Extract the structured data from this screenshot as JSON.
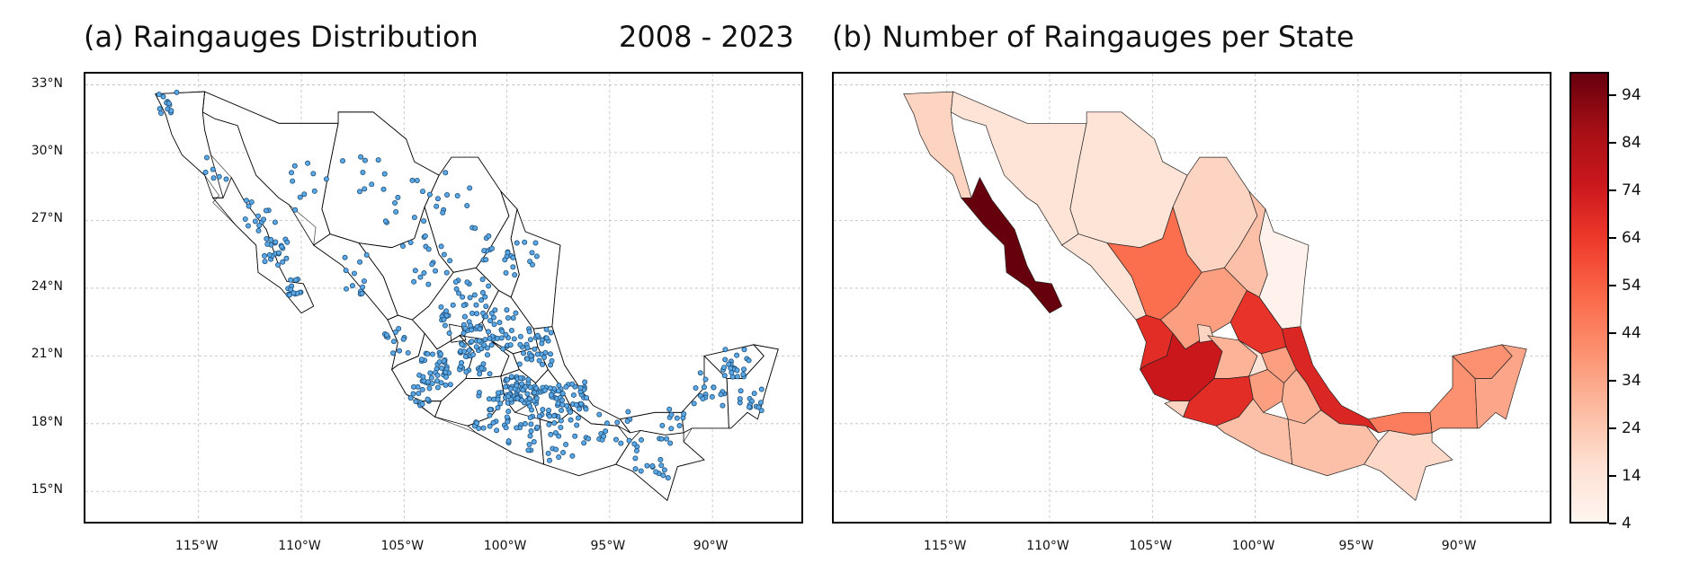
{
  "panel_a": {
    "title": "(a) Raingauges Distribution",
    "period": "2008 - 2023"
  },
  "panel_b": {
    "title": "(b) Number of Raingauges per State"
  },
  "lat_ticks": [
    "33°N",
    "30°N",
    "27°N",
    "24°N",
    "21°N",
    "18°N",
    "15°N"
  ],
  "lon_ticks": [
    "115°W",
    "110°W",
    "105°W",
    "100°W",
    "95°W",
    "90°W"
  ],
  "lat_values": [
    33,
    30,
    27,
    24,
    21,
    18,
    15
  ],
  "lon_values": [
    -115,
    -110,
    -105,
    -100,
    -95,
    -90
  ],
  "extent": {
    "lon": [
      -120.5,
      -85.5
    ],
    "lat": [
      13.5,
      33.5
    ]
  },
  "colorbar": {
    "ticks": [
      "94",
      "84",
      "74",
      "64",
      "54",
      "44",
      "34",
      "24",
      "14",
      "4"
    ],
    "tick_values": [
      94,
      84,
      74,
      64,
      54,
      44,
      34,
      24,
      14,
      4
    ],
    "min": 4,
    "max": 99,
    "colormap": "Reds",
    "colors": [
      "#fff5f0",
      "#fee0d2",
      "#fcbba1",
      "#fc9272",
      "#fb6a4a",
      "#ef3b2c",
      "#cb181d",
      "#a50f15",
      "#67000d"
    ]
  },
  "colors": {
    "point_fill": "#5aa9e6",
    "point_edge": "#1f4e79",
    "grid": "#bdbdbd"
  }
}
